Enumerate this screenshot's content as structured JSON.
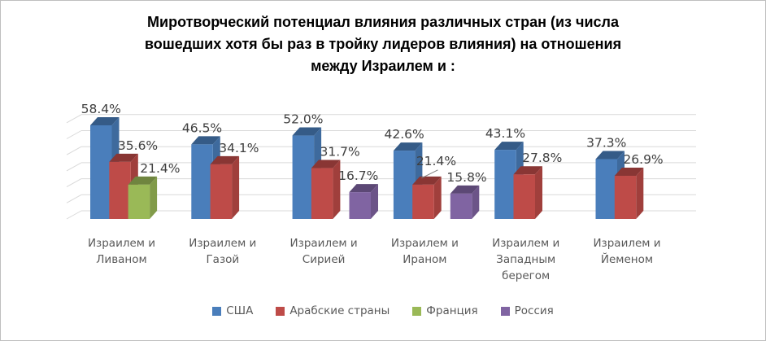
{
  "chart_data": {
    "type": "bar",
    "variant": "3d-clustered-column",
    "title": "Миротворческий потенциал влияния различных стран (из числа вошедших хотя бы раз в тройку лидеров влияния) на отношения между Израилем и :",
    "categories": [
      "Израилем и Ливаном",
      "Израилем и Газой",
      "Израилем и Сирией",
      "Израилем и Ираном",
      "Израилем и Западным берегом",
      "Израилем и Йеменом"
    ],
    "series": [
      {
        "name": "США",
        "color": "#4a7ebb",
        "values": [
          58.4,
          46.5,
          52.0,
          42.6,
          43.1,
          37.3
        ]
      },
      {
        "name": "Арабские страны",
        "color": "#be4b48",
        "values": [
          35.6,
          34.1,
          31.7,
          21.4,
          27.8,
          26.9
        ]
      },
      {
        "name": "Франция",
        "color": "#9ab957",
        "values": [
          21.4,
          null,
          null,
          null,
          null,
          null
        ]
      },
      {
        "name": "Россия",
        "color": "#8064a2",
        "values": [
          null,
          null,
          16.7,
          15.8,
          null,
          null
        ]
      }
    ],
    "value_format": "0.0%",
    "ylim": [
      0,
      60
    ],
    "grid": true,
    "gridline_step_percent": 10,
    "legend_position": "bottom",
    "colors": {
      "gridline": "#d9d9d9",
      "leader_line": "#7f7f7f",
      "title_text": "#000000",
      "value_label_text": "#3f3f3f",
      "axis_text": "#595959",
      "frame_border": "#bfbfbf",
      "background": "#ffffff"
    }
  }
}
